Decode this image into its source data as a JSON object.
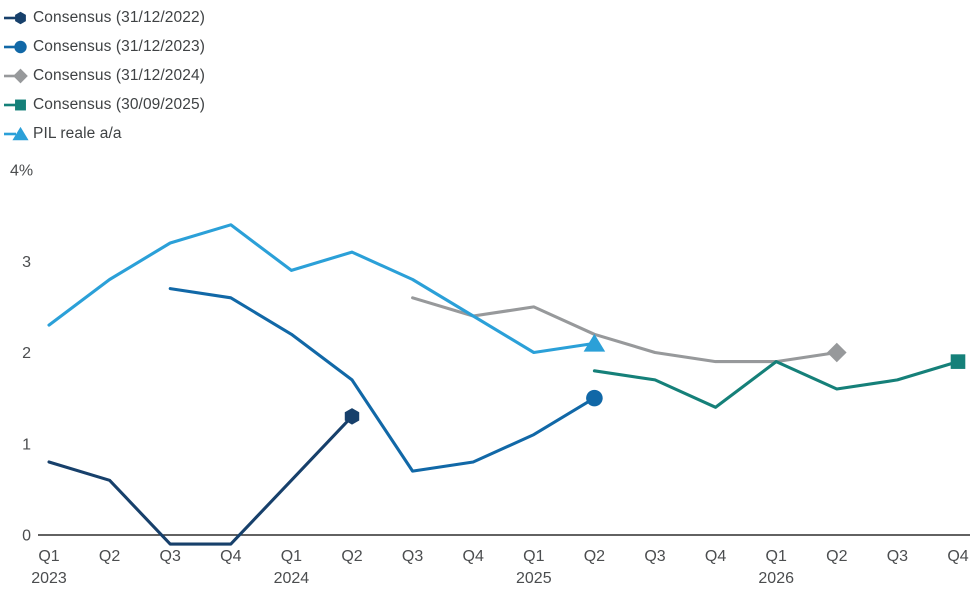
{
  "page": {
    "background": "#ffffff"
  },
  "legend": {
    "position": "top-left"
  },
  "chart_data": {
    "type": "line",
    "title": "",
    "x_categories": [
      "Q1 2023",
      "Q2 2023",
      "Q3 2023",
      "Q4 2023",
      "Q1 2024",
      "Q2 2024",
      "Q3 2024",
      "Q4 2024",
      "Q1 2025",
      "Q2 2025",
      "Q3 2025",
      "Q4 2025",
      "Q1 2026",
      "Q2 2026",
      "Q3 2026",
      "Q4 2026"
    ],
    "x_tick_labels": [
      "Q1",
      "Q2",
      "Q3",
      "Q4",
      "Q1",
      "Q2",
      "Q3",
      "Q4",
      "Q1",
      "Q2",
      "Q3",
      "Q4",
      "Q1",
      "Q2",
      "Q3",
      "Q4"
    ],
    "x_year_labels": [
      {
        "index": 0,
        "label": "2023"
      },
      {
        "index": 4,
        "label": "2024"
      },
      {
        "index": 8,
        "label": "2025"
      },
      {
        "index": 12,
        "label": "2026"
      }
    ],
    "yaxis": {
      "ticks": [
        "0",
        "1",
        "2",
        "3"
      ],
      "top_label": "4%",
      "ylim": [
        -0.2,
        4
      ],
      "unit": "%"
    },
    "grid": "off",
    "axis_color": "#2f2f2f",
    "label_color": "#4b4d4f",
    "series": [
      {
        "name": "Consensus (31/12/2022)",
        "color": "#17406b",
        "marker": "hexagon",
        "values": [
          0.8,
          0.6,
          -0.1,
          -0.1,
          0.6,
          1.3,
          null,
          null,
          null,
          null,
          null,
          null,
          null,
          null,
          null,
          null
        ]
      },
      {
        "name": "Consensus (31/12/2023)",
        "color": "#1168a7",
        "marker": "circle",
        "values": [
          null,
          null,
          2.7,
          2.6,
          2.2,
          1.7,
          0.7,
          0.8,
          1.1,
          1.5,
          null,
          null,
          null,
          null,
          null,
          null
        ]
      },
      {
        "name": "Consensus (31/12/2024)",
        "color": "#97999b",
        "marker": "diamond",
        "values": [
          null,
          null,
          null,
          null,
          null,
          null,
          2.6,
          2.4,
          2.5,
          2.2,
          2.0,
          1.9,
          1.9,
          2.0,
          null,
          null
        ]
      },
      {
        "name": "Consensus (30/09/2025)",
        "color": "#158079",
        "marker": "square",
        "values": [
          null,
          null,
          null,
          null,
          null,
          null,
          null,
          null,
          null,
          1.8,
          1.7,
          1.4,
          1.9,
          1.6,
          1.7,
          1.9
        ]
      },
      {
        "name": "PIL reale a/a",
        "color": "#2ba0d8",
        "marker": "triangle",
        "values": [
          2.3,
          2.8,
          3.2,
          3.4,
          2.9,
          3.1,
          2.8,
          2.4,
          2.0,
          2.1,
          null,
          null,
          null,
          null,
          null,
          null
        ]
      }
    ]
  }
}
